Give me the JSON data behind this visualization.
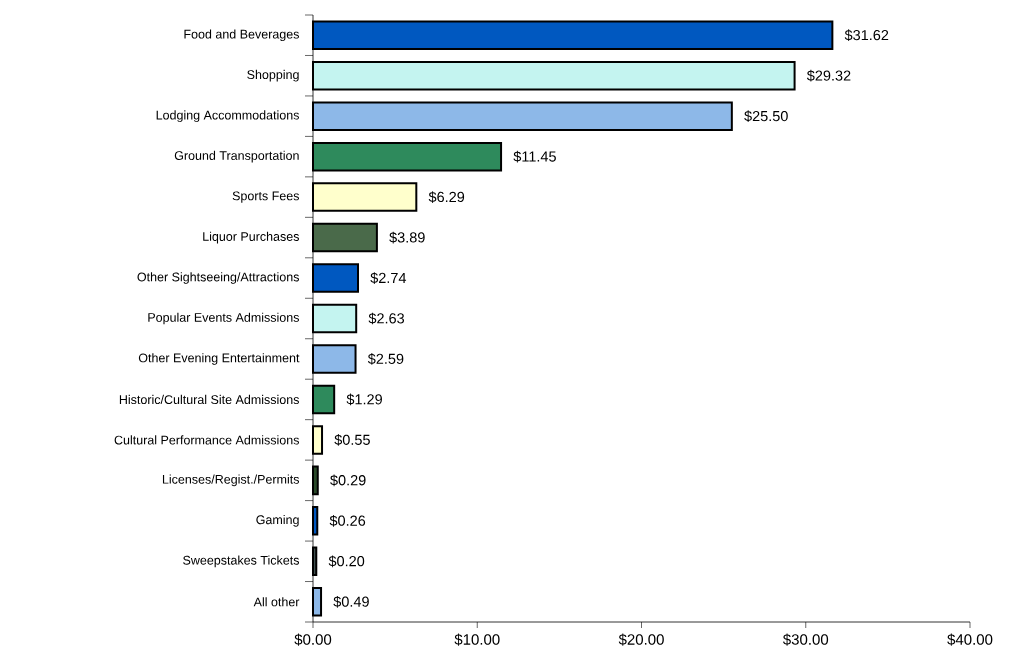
{
  "chart_data": {
    "type": "bar",
    "orientation": "horizontal",
    "categories": [
      "Food and Beverages",
      "Shopping",
      "Lodging Accommodations",
      "Ground Transportation",
      "Sports Fees",
      "Liquor Purchases",
      "Other Sightseeing/Attractions",
      "Popular Events Admissions",
      "Other Evening Entertainment",
      "Historic/Cultural Site Admissions",
      "Cultural Performance Admissions",
      "Licenses/Regist./Permits",
      "Gaming",
      "Sweepstakes Tickets",
      "All other"
    ],
    "values": [
      31.62,
      29.32,
      25.5,
      11.45,
      6.29,
      3.89,
      2.74,
      2.63,
      2.59,
      1.29,
      0.55,
      0.29,
      0.26,
      0.2,
      0.49
    ],
    "value_labels": [
      "$31.62",
      "$29.32",
      "$25.50",
      "$11.45",
      "$6.29",
      "$3.89",
      "$2.74",
      "$2.63",
      "$2.59",
      "$1.29",
      "$0.55",
      "$0.29",
      "$0.26",
      "$0.20",
      "$0.49"
    ],
    "colors": [
      "#0058c0",
      "#c4f4f0",
      "#8db8e8",
      "#2e8a5c",
      "#ffffcc",
      "#4a6a4a",
      "#0058c0",
      "#c4f4f0",
      "#8db8e8",
      "#2e8a5c",
      "#ffffcc",
      "#2a4a2a",
      "#0058c0",
      "#405050",
      "#8db8e8"
    ],
    "xlim": [
      0,
      40
    ],
    "xticks": [
      {
        "value": 0,
        "label": "$0.00"
      },
      {
        "value": 10,
        "label": "$10.00"
      },
      {
        "value": 20,
        "label": "$20.00"
      },
      {
        "value": 30,
        "label": "$30.00"
      },
      {
        "value": 40,
        "label": "$40.00"
      }
    ]
  }
}
